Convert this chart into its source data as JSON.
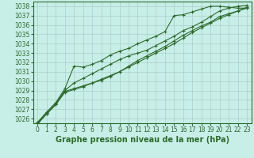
{
  "title": "Graphe pression niveau de la mer (hPa)",
  "x_hours": [
    0,
    1,
    2,
    3,
    4,
    5,
    6,
    7,
    8,
    9,
    10,
    11,
    12,
    13,
    14,
    15,
    16,
    17,
    18,
    19,
    20,
    21,
    22,
    23
  ],
  "line1": [
    1025.4,
    1026.5,
    1027.5,
    1028.9,
    1029.2,
    1029.5,
    1029.8,
    1030.2,
    1030.6,
    1031.0,
    1031.6,
    1032.2,
    1032.7,
    1033.2,
    1033.7,
    1034.3,
    1034.9,
    1035.4,
    1035.9,
    1036.3,
    1036.9,
    1037.2,
    1037.5,
    1037.8
  ],
  "line2": [
    1025.5,
    1026.6,
    1027.6,
    1029.0,
    1029.8,
    1030.3,
    1030.8,
    1031.3,
    1031.8,
    1032.3,
    1032.7,
    1033.0,
    1033.3,
    1033.8,
    1034.3,
    1034.8,
    1035.4,
    1035.8,
    1036.3,
    1036.9,
    1037.5,
    1037.8,
    1038.0,
    1038.1
  ],
  "line3": [
    1025.6,
    1026.7,
    1027.7,
    1029.2,
    1031.6,
    1031.5,
    1031.8,
    1032.2,
    1032.8,
    1033.2,
    1033.5,
    1034.0,
    1034.4,
    1034.8,
    1035.3,
    1037.0,
    1037.1,
    1037.4,
    1037.7,
    1038.0,
    1038.0,
    1037.9,
    1037.8,
    1037.8
  ],
  "line4": [
    1025.6,
    1026.5,
    1027.5,
    1028.8,
    1029.1,
    1029.4,
    1029.8,
    1030.1,
    1030.5,
    1031.0,
    1031.5,
    1032.0,
    1032.5,
    1033.0,
    1033.5,
    1034.0,
    1034.6,
    1035.2,
    1035.7,
    1036.2,
    1036.7,
    1037.1,
    1037.5,
    1037.9
  ],
  "line_color": "#2d6a2d",
  "marker": "+",
  "bg_color": "#c8eee8",
  "grid_color": "#aacfc8",
  "ylim_min": 1025.5,
  "ylim_max": 1038.5,
  "yticks": [
    1026,
    1027,
    1028,
    1029,
    1030,
    1031,
    1032,
    1033,
    1034,
    1035,
    1036,
    1037,
    1038
  ],
  "tick_fontsize": 5.5,
  "xlabel_fontsize": 7.0,
  "lw": 0.8,
  "ms": 2.5,
  "mew": 0.8
}
